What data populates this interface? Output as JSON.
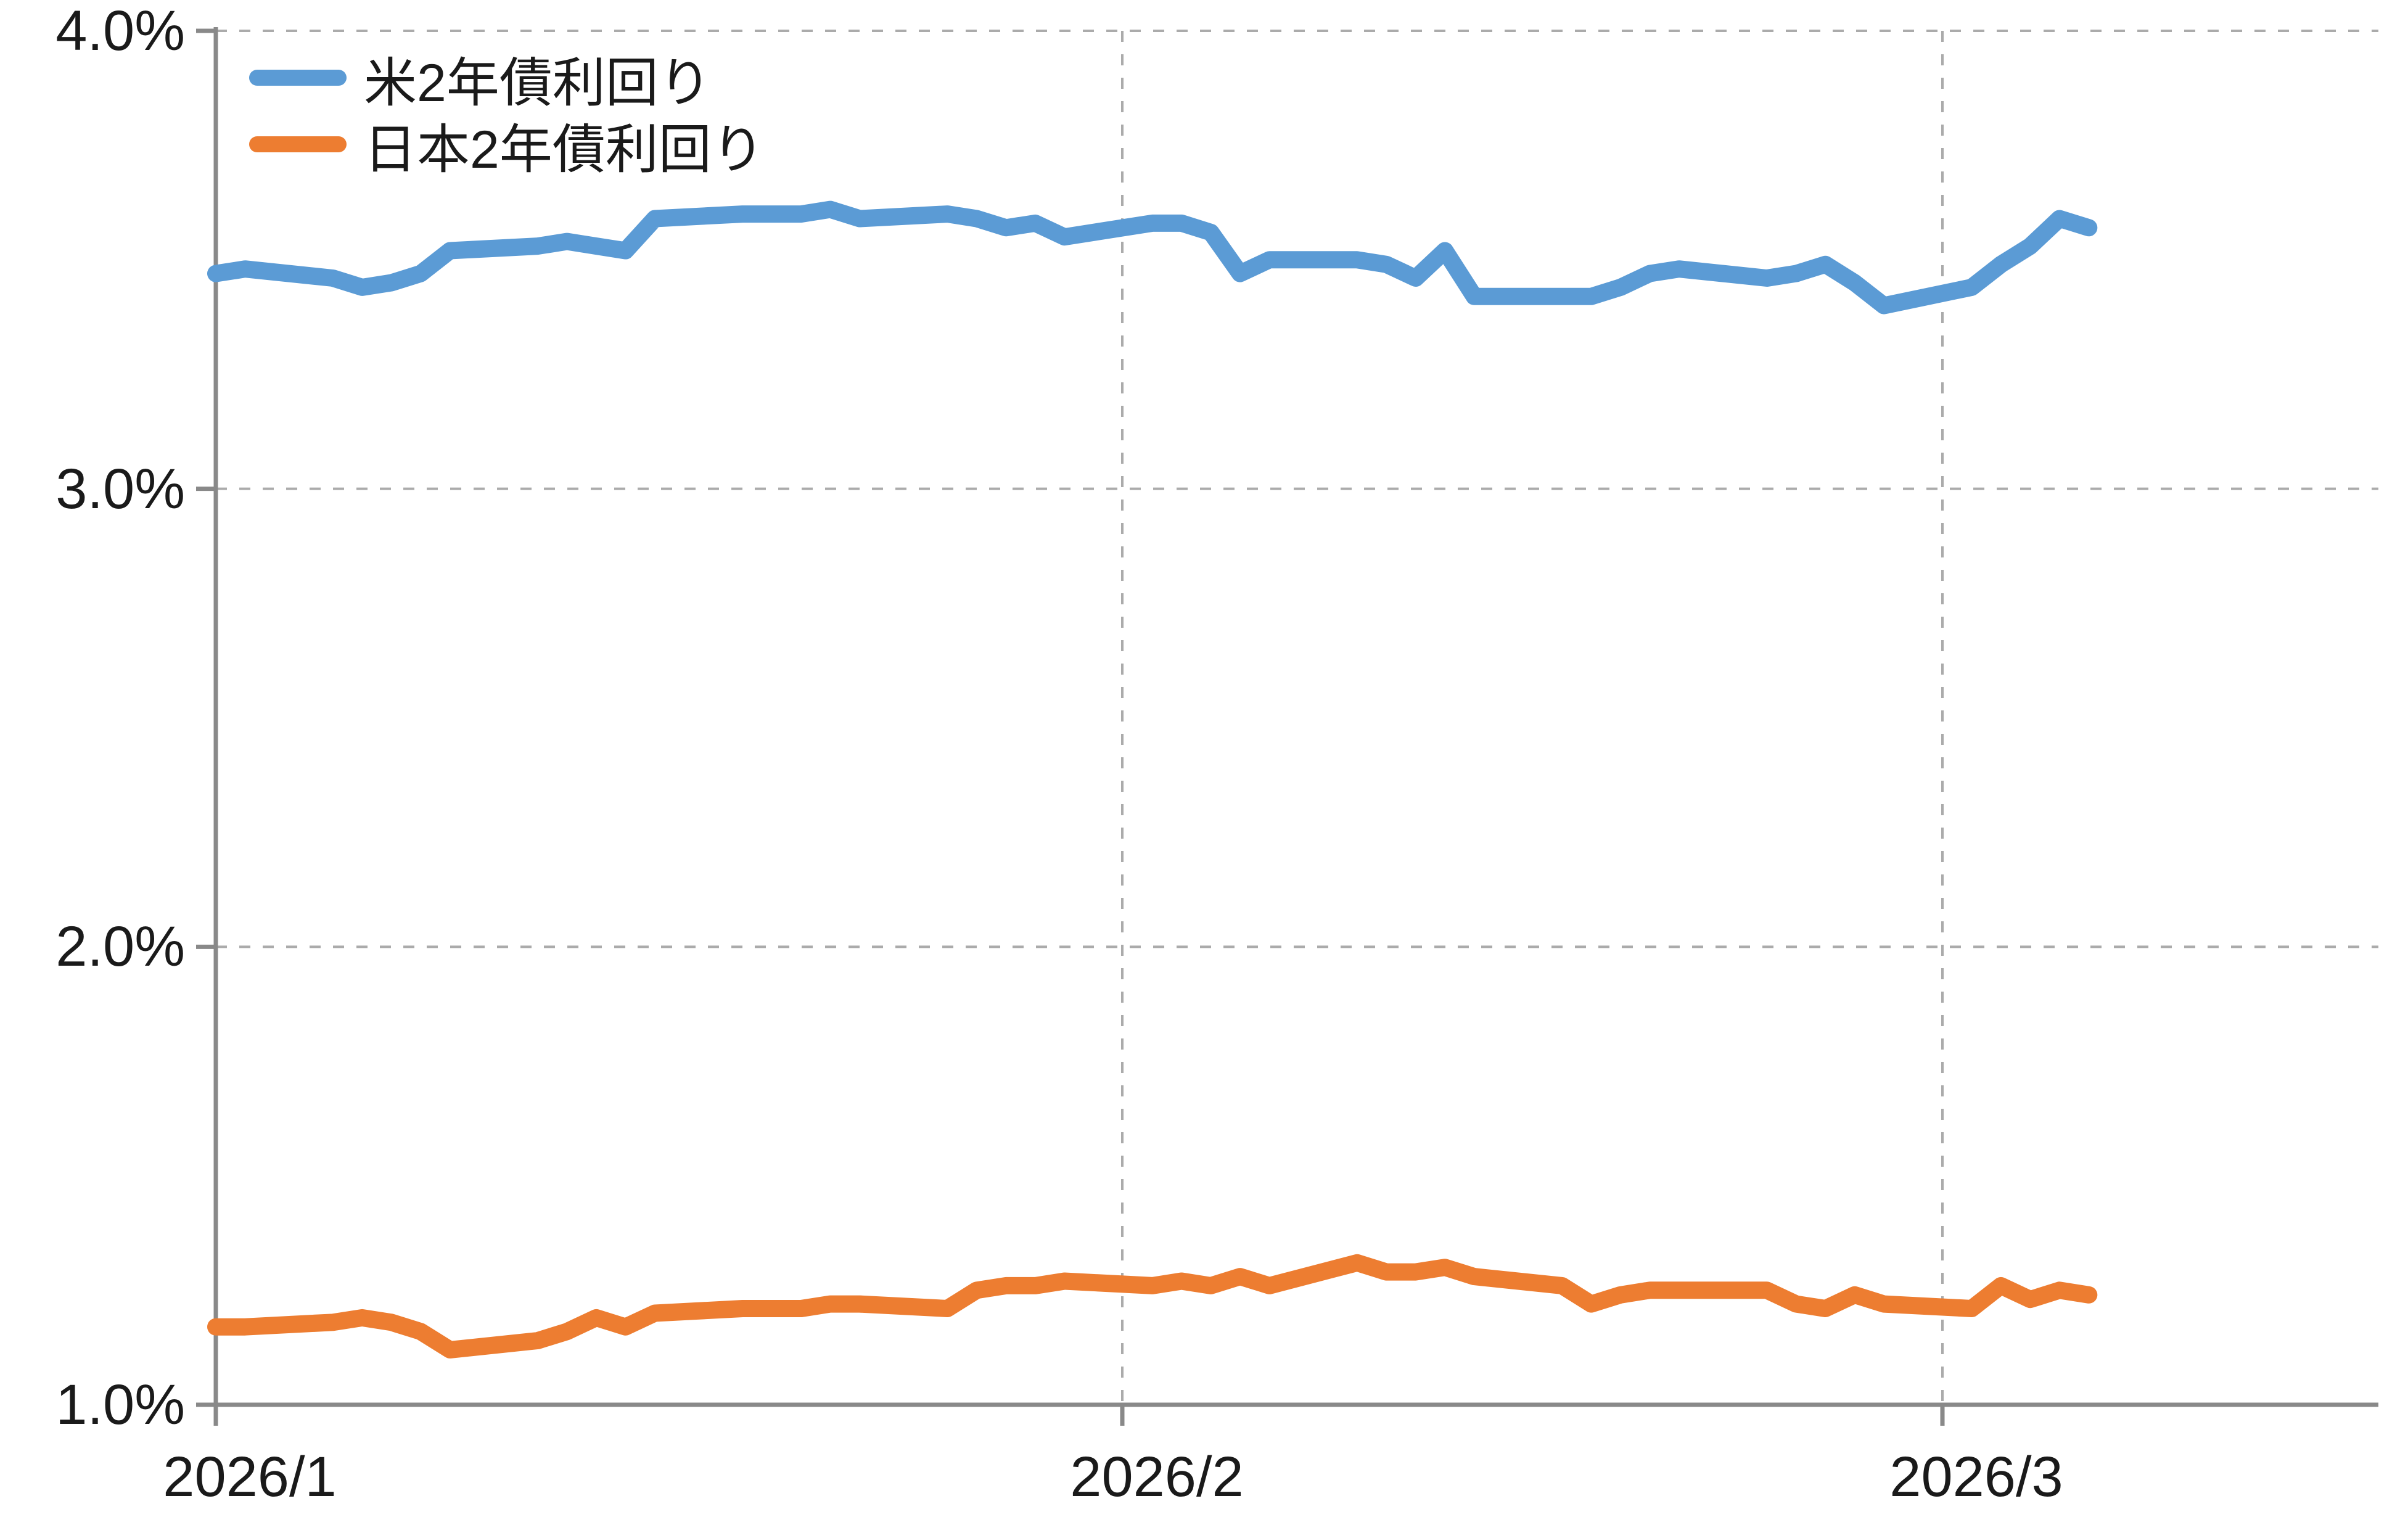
{
  "chart_data": {
    "type": "line",
    "title": "",
    "xlabel": "",
    "ylabel": "",
    "x": [
      "1/1",
      "1/2",
      "1/5",
      "1/6",
      "1/7",
      "1/8",
      "1/9",
      "1/12",
      "1/13",
      "1/14",
      "1/15",
      "1/16",
      "1/19",
      "1/20",
      "1/21",
      "1/22",
      "1/23",
      "1/26",
      "1/27",
      "1/28",
      "1/29",
      "1/30",
      "2/2",
      "2/3",
      "2/4",
      "2/5",
      "2/6",
      "2/9",
      "2/10",
      "2/11",
      "2/12",
      "2/13",
      "2/16",
      "2/17",
      "2/18",
      "2/19",
      "2/20",
      "2/23",
      "2/24",
      "2/25",
      "2/26",
      "2/27",
      "3/2",
      "3/3",
      "3/4",
      "3/5",
      "3/6"
    ],
    "x_year": "2026",
    "series": [
      {
        "name": "米2年債利回り",
        "color": "#5B9BD5",
        "values": [
          3.47,
          3.48,
          3.46,
          3.44,
          3.45,
          3.47,
          3.52,
          3.53,
          3.54,
          3.53,
          3.52,
          3.59,
          3.6,
          3.6,
          3.6,
          3.61,
          3.59,
          3.6,
          3.59,
          3.57,
          3.58,
          3.55,
          3.58,
          3.58,
          3.56,
          3.47,
          3.5,
          3.5,
          3.49,
          3.46,
          3.52,
          3.42,
          3.42,
          3.42,
          3.44,
          3.47,
          3.48,
          3.46,
          3.47,
          3.49,
          3.45,
          3.4,
          3.44,
          3.49,
          3.53,
          3.59,
          3.57
        ]
      },
      {
        "name": "日本2年債利回り",
        "color": "#ED7D31",
        "values": [
          1.17,
          1.17,
          1.18,
          1.19,
          1.18,
          1.16,
          1.12,
          1.14,
          1.16,
          1.19,
          1.17,
          1.2,
          1.21,
          1.21,
          1.21,
          1.22,
          1.22,
          1.21,
          1.25,
          1.26,
          1.26,
          1.27,
          1.26,
          1.27,
          1.26,
          1.28,
          1.26,
          1.31,
          1.29,
          1.29,
          1.3,
          1.28,
          1.26,
          1.22,
          1.24,
          1.25,
          1.25,
          1.25,
          1.22,
          1.21,
          1.24,
          1.22,
          1.21,
          1.26,
          1.23,
          1.25,
          1.24
        ]
      }
    ],
    "y_axis": {
      "min": 1.0,
      "max": 4.0,
      "tick_step": 1.0,
      "tick_labels": [
        "4.0%",
        "3.0%",
        "2.0%",
        "1.0%"
      ],
      "format": "percent"
    },
    "x_axis": {
      "tick_labels": [
        "2026/1",
        "2026/2",
        "2026/3"
      ],
      "tick_month_day_offsets": [
        0,
        31,
        59
      ]
    },
    "grid": "dashed",
    "legend_position": "top-left-inside",
    "axis_color": "#898989",
    "grid_color": "#ABABAB"
  }
}
